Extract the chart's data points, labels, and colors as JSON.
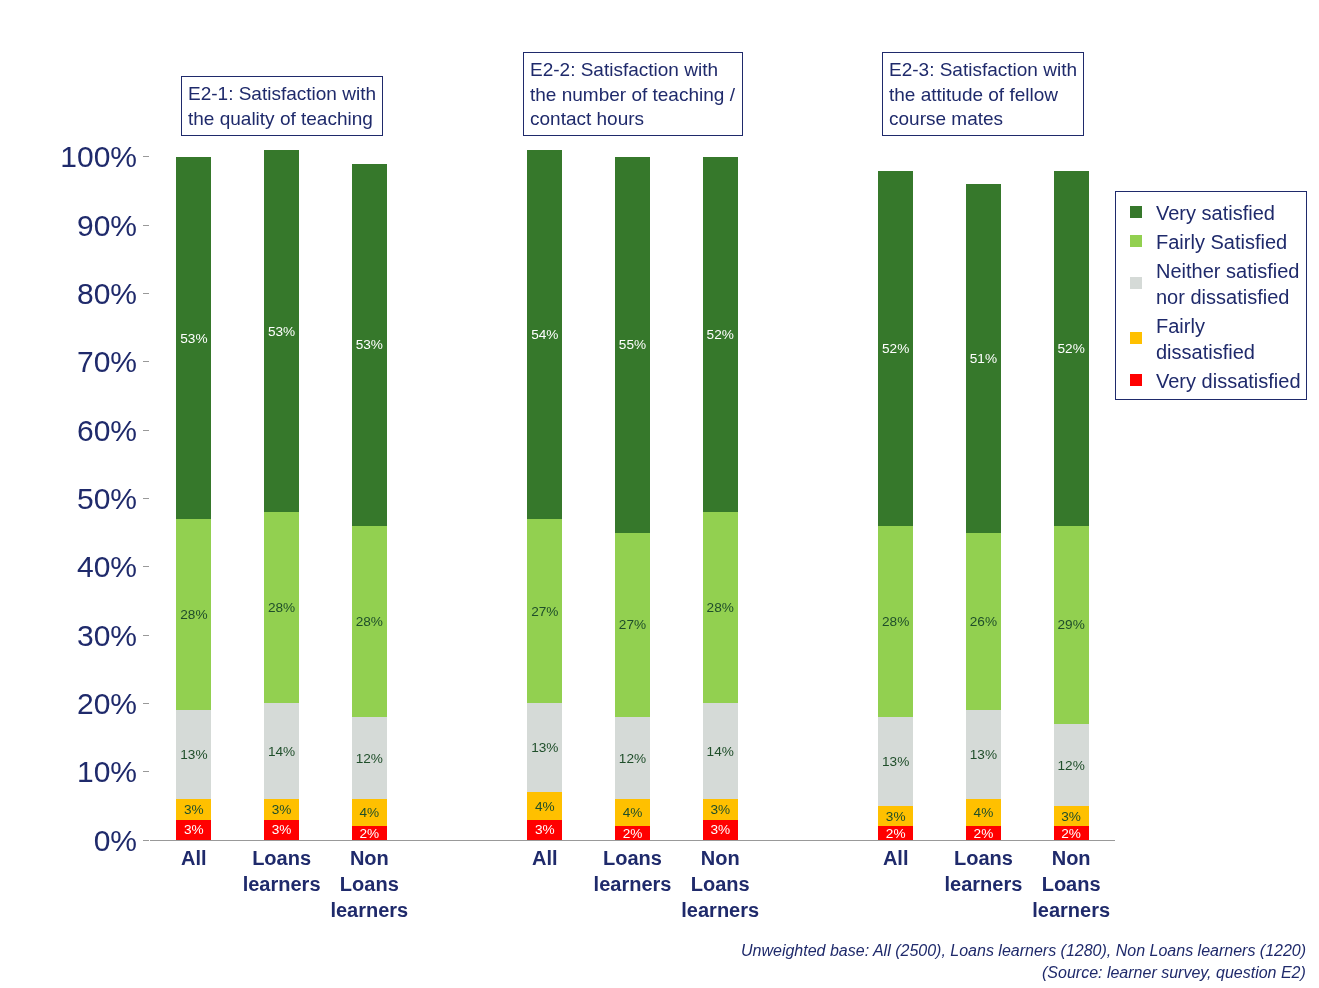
{
  "chart_data": {
    "type": "bar",
    "stacked": true,
    "categories": [
      "All",
      "Loans learners",
      "Non Loans learners",
      null,
      "All",
      "Loans learners",
      "Non Loans learners",
      null,
      "All",
      "Loans learners",
      "Non Loans learners"
    ],
    "series": [
      {
        "name": "Very dissatisfied",
        "color": "#ff0000",
        "values": [
          3,
          3,
          2,
          null,
          3,
          2,
          3,
          null,
          2,
          2,
          2
        ],
        "value_labels": [
          "3%",
          "3%",
          "2%",
          null,
          "3%",
          "2%",
          "3%",
          null,
          "2%",
          "2%",
          "2%"
        ]
      },
      {
        "name": "Fairly dissatisfied",
        "color": "#ffc000",
        "values": [
          3,
          3,
          4,
          null,
          4,
          4,
          3,
          null,
          3,
          4,
          3
        ],
        "value_labels": [
          "3%",
          "3%",
          "4%",
          null,
          "4%",
          "4%",
          "3%",
          null,
          "3%",
          "4%",
          "3%"
        ]
      },
      {
        "name": "Neither satisfied nor dissatisfied",
        "color": "#d5dad7",
        "values": [
          13,
          14,
          12,
          null,
          13,
          12,
          14,
          null,
          13,
          13,
          12
        ],
        "value_labels": [
          "13%",
          "14%",
          "12%",
          null,
          "13%",
          "12%",
          "14%",
          null,
          "13%",
          "13%",
          "12%"
        ]
      },
      {
        "name": "Fairly Satisfied",
        "color": "#92d050",
        "values": [
          28,
          28,
          28,
          null,
          27,
          27,
          28,
          null,
          28,
          26,
          29
        ],
        "value_labels": [
          "28%",
          "28%",
          "28%",
          null,
          "27%",
          "27%",
          "28%",
          null,
          "28%",
          "26%",
          "29%"
        ]
      },
      {
        "name": "Very satisfied",
        "color": "#36782b",
        "values": [
          53,
          53,
          53,
          null,
          54,
          55,
          52,
          null,
          52,
          51,
          52
        ],
        "value_labels": [
          "53%",
          "53%",
          "53%",
          null,
          "54%",
          "55%",
          "52%",
          null,
          "52%",
          "51%",
          "52%"
        ]
      }
    ],
    "ylim": [
      0,
      101
    ],
    "yticks": [
      {
        "value": 0,
        "label": "0%"
      },
      {
        "value": 10,
        "label": "10%"
      },
      {
        "value": 20,
        "label": "20%"
      },
      {
        "value": 30,
        "label": "30%"
      },
      {
        "value": 40,
        "label": "40%"
      },
      {
        "value": 50,
        "label": "50%"
      },
      {
        "value": 60,
        "label": "60%"
      },
      {
        "value": 70,
        "label": "70%"
      },
      {
        "value": 80,
        "label": "80%"
      },
      {
        "value": 90,
        "label": "90%"
      },
      {
        "value": 100,
        "label": "100%"
      }
    ],
    "legend": "right",
    "annotations": [
      "E2-1: Satisfaction with the quality of teaching",
      "E2-2: Satisfaction with the number of teaching / contact hours",
      "E2-3: Satisfaction with the attitude of fellow course mates",
      "Unweighted base: All (2500), Loans learners (1280), Non Loans learners (1220)",
      "(Source: learner survey, question E2)"
    ]
  }
}
